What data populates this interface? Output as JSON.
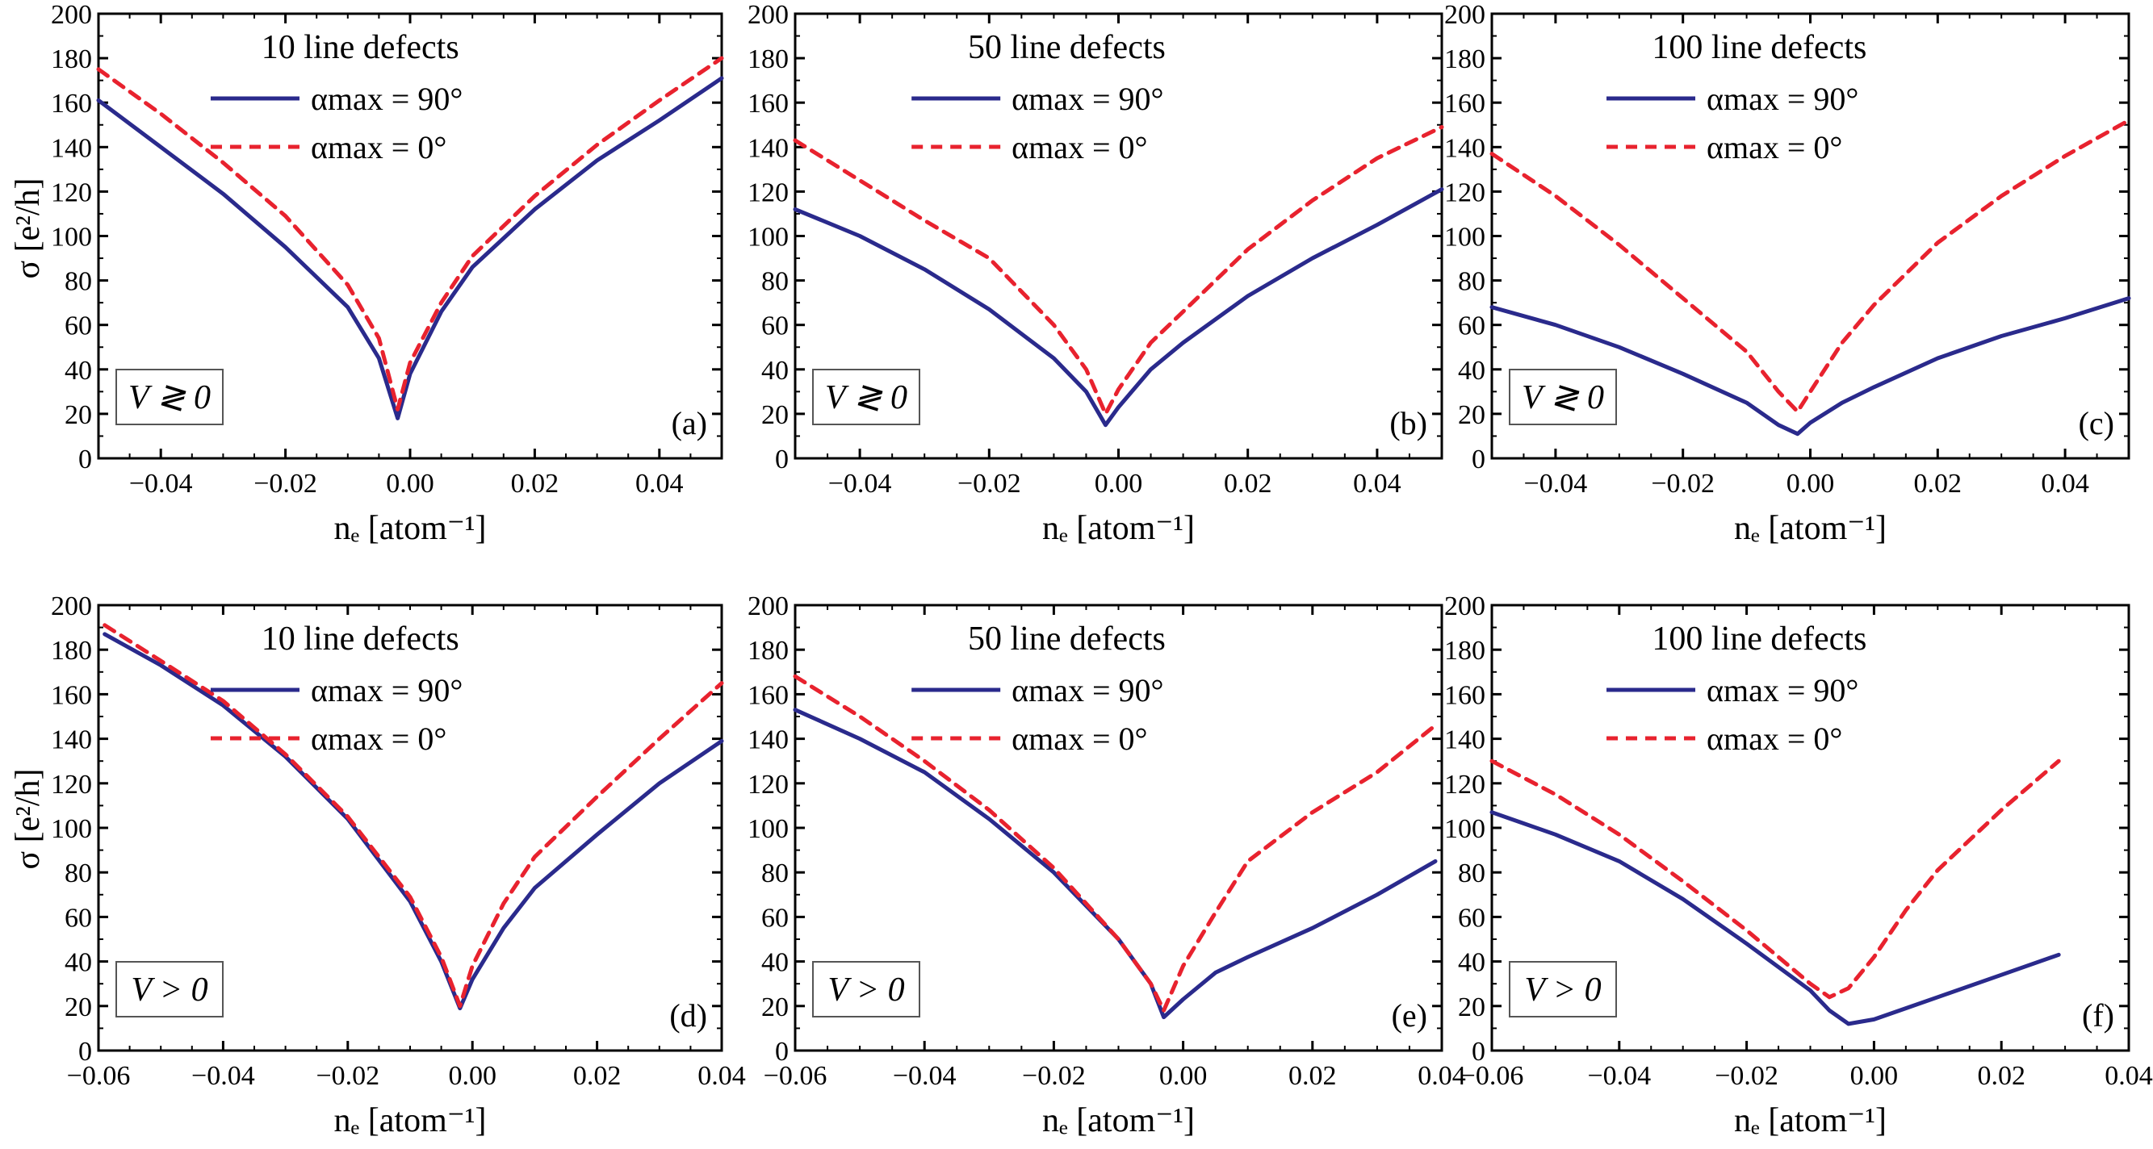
{
  "figure": {
    "y_label": "σ [e²/h]",
    "x_label": "nₑ [atom⁻¹]"
  },
  "colors": {
    "solid": "#2a2a8c",
    "dashed": "#e8222e"
  },
  "chart_data": [
    {
      "type": "line",
      "panel": "(a)",
      "annotation": "10 line defects",
      "box_label": "V ≷ 0",
      "xlim": [
        -0.05,
        0.05
      ],
      "ylim": [
        0,
        200
      ],
      "xticks": [
        -0.04,
        -0.02,
        0.0,
        0.02,
        0.04
      ],
      "xtick_labels": [
        "−0.04",
        "−0.02",
        "0.00",
        "0.02",
        "0.04"
      ],
      "yticks": [
        0,
        20,
        40,
        60,
        80,
        100,
        120,
        140,
        160,
        180,
        200
      ],
      "ytick_labels": [
        "0",
        "20",
        "40",
        "60",
        "80",
        "100",
        "120",
        "140",
        "160",
        "180",
        "200"
      ],
      "xlabel": "nₑ [atom⁻¹]",
      "ylabel": "σ [e²/h]",
      "series": [
        {
          "name": "αmax = 90°",
          "style": "solid",
          "x": [
            -0.05,
            -0.04,
            -0.03,
            -0.02,
            -0.01,
            -0.005,
            -0.002,
            0.0,
            0.005,
            0.01,
            0.02,
            0.03,
            0.04,
            0.05
          ],
          "y": [
            161,
            140,
            119,
            95,
            68,
            45,
            18,
            38,
            66,
            86,
            112,
            134,
            152,
            171
          ]
        },
        {
          "name": "αmax = 0°",
          "style": "dashed",
          "x": [
            -0.05,
            -0.04,
            -0.03,
            -0.02,
            -0.01,
            -0.005,
            -0.002,
            0.0,
            0.005,
            0.01,
            0.02,
            0.03,
            0.04,
            0.05
          ],
          "y": [
            175,
            155,
            133,
            109,
            78,
            54,
            22,
            43,
            70,
            91,
            118,
            141,
            161,
            180
          ]
        }
      ],
      "legend": [
        "αmax = 90°",
        "αmax = 0°"
      ]
    },
    {
      "type": "line",
      "panel": "(b)",
      "annotation": "50 line defects",
      "box_label": "V ≷ 0",
      "xlim": [
        -0.05,
        0.05
      ],
      "ylim": [
        0,
        200
      ],
      "xticks": [
        -0.04,
        -0.02,
        0.0,
        0.02,
        0.04
      ],
      "xtick_labels": [
        "−0.04",
        "−0.02",
        "0.00",
        "0.02",
        "0.04"
      ],
      "yticks": [
        0,
        20,
        40,
        60,
        80,
        100,
        120,
        140,
        160,
        180,
        200
      ],
      "ytick_labels": [
        "0",
        "20",
        "40",
        "60",
        "80",
        "100",
        "120",
        "140",
        "160",
        "180",
        "200"
      ],
      "xlabel": "nₑ [atom⁻¹]",
      "ylabel": "",
      "series": [
        {
          "name": "αmax = 90°",
          "style": "solid",
          "x": [
            -0.05,
            -0.04,
            -0.03,
            -0.02,
            -0.01,
            -0.005,
            -0.002,
            0.0,
            0.005,
            0.01,
            0.02,
            0.03,
            0.04,
            0.05
          ],
          "y": [
            112,
            100,
            85,
            67,
            45,
            30,
            15,
            23,
            40,
            52,
            73,
            90,
            105,
            121
          ]
        },
        {
          "name": "αmax = 0°",
          "style": "dashed",
          "x": [
            -0.05,
            -0.04,
            -0.03,
            -0.02,
            -0.01,
            -0.005,
            -0.002,
            0.0,
            0.005,
            0.01,
            0.02,
            0.03,
            0.04,
            0.05
          ],
          "y": [
            143,
            125,
            107,
            90,
            60,
            40,
            20,
            31,
            52,
            66,
            94,
            116,
            135,
            149
          ]
        }
      ],
      "legend": [
        "αmax = 90°",
        "αmax = 0°"
      ]
    },
    {
      "type": "line",
      "panel": "(c)",
      "annotation": "100 line defects",
      "box_label": "V ≷ 0",
      "xlim": [
        -0.05,
        0.05
      ],
      "ylim": [
        0,
        200
      ],
      "xticks": [
        -0.04,
        -0.02,
        0.0,
        0.02,
        0.04
      ],
      "xtick_labels": [
        "−0.04",
        "−0.02",
        "0.00",
        "0.02",
        "0.04"
      ],
      "yticks": [
        0,
        20,
        40,
        60,
        80,
        100,
        120,
        140,
        160,
        180,
        200
      ],
      "ytick_labels": [
        "0",
        "20",
        "40",
        "60",
        "80",
        "100",
        "120",
        "140",
        "160",
        "180",
        "200"
      ],
      "xlabel": "nₑ [atom⁻¹]",
      "ylabel": "",
      "series": [
        {
          "name": "αmax = 90°",
          "style": "solid",
          "x": [
            -0.05,
            -0.04,
            -0.03,
            -0.02,
            -0.01,
            -0.005,
            -0.002,
            0.0,
            0.005,
            0.01,
            0.02,
            0.03,
            0.04,
            0.05
          ],
          "y": [
            68,
            60,
            50,
            38,
            25,
            15,
            11,
            16,
            25,
            32,
            45,
            55,
            63,
            72
          ]
        },
        {
          "name": "αmax = 0°",
          "style": "dashed",
          "x": [
            -0.05,
            -0.04,
            -0.03,
            -0.02,
            -0.01,
            -0.005,
            -0.002,
            0.0,
            0.005,
            0.01,
            0.02,
            0.03,
            0.04,
            0.05
          ],
          "y": [
            137,
            118,
            96,
            72,
            48,
            30,
            21,
            30,
            52,
            69,
            97,
            118,
            136,
            152
          ]
        }
      ],
      "legend": [
        "αmax = 90°",
        "αmax = 0°"
      ]
    },
    {
      "type": "line",
      "panel": "(d)",
      "annotation": "10 line defects",
      "box_label": "V > 0",
      "xlim": [
        -0.06,
        0.04
      ],
      "ylim": [
        0,
        200
      ],
      "xticks": [
        -0.06,
        -0.04,
        -0.02,
        0.0,
        0.02,
        0.04
      ],
      "xtick_labels": [
        "−0.06",
        "−0.04",
        "−0.02",
        "0.00",
        "0.02",
        "0.04"
      ],
      "yticks": [
        0,
        20,
        40,
        60,
        80,
        100,
        120,
        140,
        160,
        180,
        200
      ],
      "ytick_labels": [
        "0",
        "20",
        "40",
        "60",
        "80",
        "100",
        "120",
        "140",
        "160",
        "180",
        "200"
      ],
      "xlabel": "nₑ [atom⁻¹]",
      "ylabel": "σ [e²/h]",
      "series": [
        {
          "name": "αmax = 90°",
          "style": "solid",
          "x": [
            -0.059,
            -0.05,
            -0.04,
            -0.03,
            -0.02,
            -0.01,
            -0.005,
            -0.002,
            0.0,
            0.005,
            0.01,
            0.02,
            0.03,
            0.04
          ],
          "y": [
            187,
            173,
            155,
            132,
            104,
            67,
            40,
            19,
            32,
            55,
            73,
            97,
            120,
            139
          ]
        },
        {
          "name": "αmax = 0°",
          "style": "dashed",
          "x": [
            -0.059,
            -0.05,
            -0.04,
            -0.03,
            -0.02,
            -0.01,
            -0.005,
            -0.002,
            0.0,
            0.005,
            0.01,
            0.02,
            0.03,
            0.04
          ],
          "y": [
            191,
            175,
            157,
            133,
            105,
            69,
            42,
            20,
            38,
            66,
            87,
            114,
            140,
            165
          ]
        }
      ],
      "legend": [
        "αmax = 90°",
        "αmax = 0°"
      ]
    },
    {
      "type": "line",
      "panel": "(e)",
      "annotation": "50 line defects",
      "box_label": "V > 0",
      "xlim": [
        -0.06,
        0.04
      ],
      "ylim": [
        0,
        200
      ],
      "xticks": [
        -0.06,
        -0.04,
        -0.02,
        0.0,
        0.02,
        0.04
      ],
      "xtick_labels": [
        "−0.06",
        "−0.04",
        "−0.02",
        "0.00",
        "0.02",
        "0.04"
      ],
      "yticks": [
        0,
        20,
        40,
        60,
        80,
        100,
        120,
        140,
        160,
        180,
        200
      ],
      "ytick_labels": [
        "0",
        "20",
        "40",
        "60",
        "80",
        "100",
        "120",
        "140",
        "160",
        "180",
        "200"
      ],
      "xlabel": "nₑ [atom⁻¹]",
      "ylabel": "",
      "series": [
        {
          "name": "αmax = 90°",
          "style": "solid",
          "x": [
            -0.06,
            -0.05,
            -0.04,
            -0.03,
            -0.02,
            -0.01,
            -0.005,
            -0.003,
            0.0,
            0.005,
            0.01,
            0.02,
            0.03,
            0.039
          ],
          "y": [
            153,
            140,
            125,
            104,
            80,
            50,
            30,
            15,
            23,
            35,
            42,
            55,
            70,
            85
          ]
        },
        {
          "name": "αmax = 0°",
          "style": "dashed",
          "x": [
            -0.06,
            -0.05,
            -0.04,
            -0.03,
            -0.02,
            -0.01,
            -0.005,
            -0.003,
            0.0,
            0.005,
            0.01,
            0.02,
            0.03,
            0.039
          ],
          "y": [
            168,
            150,
            130,
            108,
            82,
            50,
            30,
            18,
            38,
            62,
            85,
            107,
            125,
            146
          ]
        }
      ],
      "legend": [
        "αmax = 90°",
        "αmax = 0°"
      ]
    },
    {
      "type": "line",
      "panel": "(f)",
      "annotation": "100 line defects",
      "box_label": "V > 0",
      "xlim": [
        -0.06,
        0.04
      ],
      "ylim": [
        0,
        200
      ],
      "xticks": [
        -0.06,
        -0.04,
        -0.02,
        0.0,
        0.02,
        0.04
      ],
      "xtick_labels": [
        "−0.06",
        "−0.04",
        "−0.02",
        "0.00",
        "0.02",
        "0.04"
      ],
      "yticks": [
        0,
        20,
        40,
        60,
        80,
        100,
        120,
        140,
        160,
        180,
        200
      ],
      "ytick_labels": [
        "0",
        "20",
        "40",
        "60",
        "80",
        "100",
        "120",
        "140",
        "160",
        "180",
        "200"
      ],
      "xlabel": "nₑ [atom⁻¹]",
      "ylabel": "",
      "series": [
        {
          "name": "αmax = 90°",
          "style": "solid",
          "x": [
            -0.06,
            -0.05,
            -0.04,
            -0.03,
            -0.02,
            -0.01,
            -0.007,
            -0.004,
            0.0,
            0.005,
            0.01,
            0.02,
            0.029
          ],
          "y": [
            107,
            97,
            85,
            68,
            48,
            27,
            18,
            12,
            14,
            19,
            24,
            34,
            43
          ]
        },
        {
          "name": "αmax = 0°",
          "style": "dashed",
          "x": [
            -0.06,
            -0.05,
            -0.04,
            -0.03,
            -0.02,
            -0.01,
            -0.007,
            -0.004,
            0.0,
            0.005,
            0.01,
            0.02,
            0.029
          ],
          "y": [
            130,
            115,
            97,
            76,
            54,
            30,
            24,
            28,
            42,
            63,
            81,
            108,
            130
          ]
        }
      ],
      "legend": [
        "αmax = 90°",
        "αmax = 0°"
      ]
    }
  ]
}
